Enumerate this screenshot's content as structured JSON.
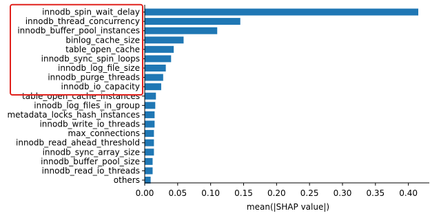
{
  "chart_data": {
    "type": "bar",
    "orientation": "horizontal",
    "categories": [
      "innodb_spin_wait_delay",
      "innodb_thread_concurrency",
      "innodb_buffer_pool_instances",
      "binlog_cache_size",
      "table_open_cache",
      "innodb_sync_spin_loops",
      "innodb_log_file_size",
      "innodb_purge_threads",
      "innodb_io_capacity",
      "table_open_cache_instances",
      "innodb_log_files_in_group",
      "metadata_locks_hash_instances",
      "innodb_write_io_threads",
      "max_connections",
      "innodb_read_ahead_threshold",
      "innodb_sync_array_size",
      "innodb_buffer_pool_size",
      "innodb_read_io_threads",
      "others"
    ],
    "values": [
      0.415,
      0.145,
      0.11,
      0.059,
      0.044,
      0.04,
      0.032,
      0.028,
      0.025,
      0.017,
      0.016,
      0.015,
      0.015,
      0.014,
      0.014,
      0.014,
      0.012,
      0.012,
      0.009
    ],
    "xlabel": "mean(|SHAP value|)",
    "xlim": [
      0,
      0.43
    ],
    "xticks": [
      0.0,
      0.05,
      0.1,
      0.15,
      0.2,
      0.25,
      0.3,
      0.35,
      0.4
    ],
    "xtick_labels": [
      "0.00",
      "0.05",
      "0.10",
      "0.15",
      "0.20",
      "0.25",
      "0.30",
      "0.35",
      "0.40"
    ],
    "grid": false,
    "highlight": {
      "from_category": 0,
      "to_category": 8,
      "color": "#e0201b"
    },
    "bar_color": "#1f77b4"
  }
}
